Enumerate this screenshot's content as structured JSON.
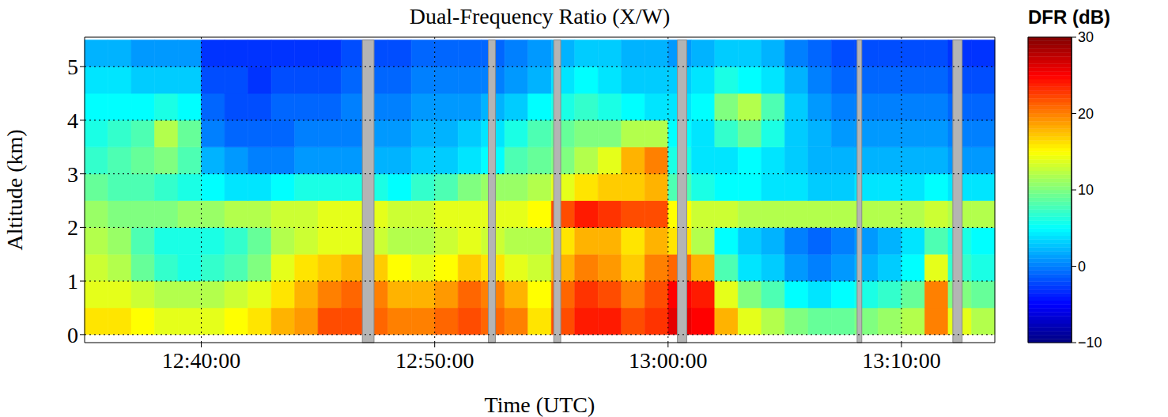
{
  "chart_data": {
    "type": "heatmap",
    "title": "Dual-Frequency Ratio (X/W)",
    "x_label": "Time (UTC)",
    "y_label": "Altitude (km)",
    "xlim": [
      755,
      794
    ],
    "xticks": [
      {
        "value": 760,
        "label": "12:40:00"
      },
      {
        "value": 770,
        "label": "12:50:00"
      },
      {
        "value": 780,
        "label": "13:00:00"
      },
      {
        "value": 790,
        "label": "13:10:00"
      }
    ],
    "ylim": [
      -0.15,
      5.55
    ],
    "yticks": [
      0,
      1,
      2,
      3,
      4,
      5
    ],
    "grid": true,
    "x": [
      755.5,
      756.5,
      757.5,
      758.5,
      759.5,
      760.5,
      761.5,
      762.5,
      763.5,
      764.5,
      765.5,
      766.5,
      767.5,
      768.5,
      769.5,
      770.5,
      771.5,
      772.5,
      773.5,
      774.5,
      775.5,
      776.5,
      777.5,
      778.5,
      779.5,
      780.5,
      781.5,
      782.5,
      783.5,
      784.5,
      785.5,
      786.5,
      787.5,
      788.5,
      789.5,
      790.5,
      791.5,
      792.5,
      793.5
    ],
    "y": [
      0.25,
      0.75,
      1.25,
      1.75,
      2.25,
      2.75,
      3.25,
      3.75,
      4.25,
      4.75,
      5.25
    ],
    "values": [
      [
        16,
        16,
        15,
        14,
        14,
        14,
        15,
        16,
        18,
        19,
        22,
        22,
        21,
        20,
        20,
        21,
        22,
        21,
        20,
        16,
        22,
        24,
        24,
        22,
        23,
        26,
        25,
        18,
        14,
        12,
        10,
        9,
        9,
        10,
        11,
        12,
        20,
        14,
        12
      ],
      [
        14,
        14,
        13,
        12,
        12,
        12,
        13,
        14,
        16,
        18,
        20,
        21,
        20,
        18,
        18,
        19,
        21,
        20,
        18,
        15,
        21,
        23,
        22,
        20,
        22,
        25,
        24,
        14,
        10,
        8,
        5,
        4,
        5,
        6,
        7,
        9,
        20,
        10,
        9
      ],
      [
        13,
        12,
        9,
        7,
        6,
        7,
        8,
        10,
        14,
        16,
        17,
        18,
        17,
        15,
        14,
        15,
        17,
        16,
        14,
        13,
        18,
        20,
        19,
        17,
        20,
        21,
        18,
        8,
        4,
        3,
        1,
        0,
        1,
        2,
        3,
        5,
        14,
        7,
        6
      ],
      [
        12,
        11,
        8,
        6,
        6,
        6,
        7,
        9,
        12,
        13,
        14,
        14,
        13,
        12,
        12,
        13,
        14,
        13,
        12,
        12,
        16,
        18,
        18,
        16,
        18,
        16,
        12,
        5,
        3,
        2,
        0,
        -1,
        0,
        1,
        2,
        4,
        8,
        6,
        5
      ],
      [
        11,
        10,
        10,
        10,
        11,
        11,
        12,
        12,
        13,
        13,
        14,
        14,
        14,
        13,
        13,
        14,
        14,
        14,
        14,
        15,
        22,
        24,
        23,
        22,
        22,
        15,
        13,
        13,
        12,
        12,
        12,
        12,
        12,
        12,
        12,
        12,
        13,
        12,
        12
      ],
      [
        9,
        8,
        8,
        7,
        6,
        5,
        4,
        4,
        5,
        6,
        6,
        6,
        6,
        5,
        7,
        8,
        10,
        11,
        11,
        12,
        14,
        16,
        17,
        17,
        18,
        8,
        6,
        5,
        5,
        4,
        4,
        3,
        3,
        4,
        4,
        4,
        5,
        4,
        4
      ],
      [
        7,
        8,
        9,
        10,
        8,
        2,
        1,
        0,
        0,
        1,
        1,
        1,
        2,
        2,
        3,
        3,
        4,
        5,
        8,
        9,
        10,
        12,
        14,
        18,
        20,
        6,
        4,
        4,
        5,
        4,
        3,
        2,
        2,
        2,
        2,
        2,
        2,
        1,
        1
      ],
      [
        6,
        7,
        8,
        12,
        9,
        0,
        -1,
        -1,
        -1,
        0,
        0,
        0,
        1,
        1,
        2,
        2,
        3,
        4,
        6,
        8,
        9,
        10,
        10,
        12,
        12,
        5,
        4,
        7,
        9,
        6,
        3,
        2,
        1,
        1,
        1,
        1,
        1,
        0,
        0
      ],
      [
        5,
        5,
        5,
        6,
        5,
        -1,
        -2,
        -2,
        -1,
        -1,
        -1,
        0,
        0,
        0,
        1,
        1,
        1,
        2,
        3,
        5,
        6,
        7,
        6,
        5,
        4,
        4,
        5,
        10,
        12,
        8,
        3,
        1,
        0,
        0,
        0,
        0,
        0,
        -1,
        -1
      ],
      [
        4,
        4,
        3,
        3,
        3,
        -2,
        -2,
        -3,
        -2,
        -2,
        -2,
        -1,
        -1,
        -1,
        0,
        0,
        0,
        0,
        1,
        2,
        4,
        5,
        4,
        3,
        3,
        3,
        4,
        6,
        5,
        4,
        2,
        0,
        -1,
        -1,
        -1,
        -1,
        -1,
        -2,
        -2
      ],
      [
        2,
        2,
        1,
        1,
        1,
        -3,
        -3,
        -3,
        -3,
        -3,
        -3,
        -2,
        -2,
        -2,
        -1,
        -1,
        -1,
        -1,
        0,
        1,
        2,
        3,
        3,
        2,
        2,
        1,
        2,
        3,
        3,
        2,
        0,
        -1,
        -2,
        -2,
        -2,
        -2,
        -2,
        -3,
        -3
      ]
    ],
    "missing": [
      [
        766.9,
        767.4
      ],
      [
        772.3,
        772.6
      ],
      [
        775.1,
        775.4
      ],
      [
        780.4,
        780.8
      ],
      [
        788.1,
        788.3
      ],
      [
        792.2,
        792.6
      ]
    ],
    "colorbar": {
      "label": "DFR (dB)",
      "range": [
        -10,
        30
      ],
      "ticks": [
        {
          "value": -10,
          "label": "−10"
        },
        0,
        10,
        20,
        30
      ]
    }
  }
}
